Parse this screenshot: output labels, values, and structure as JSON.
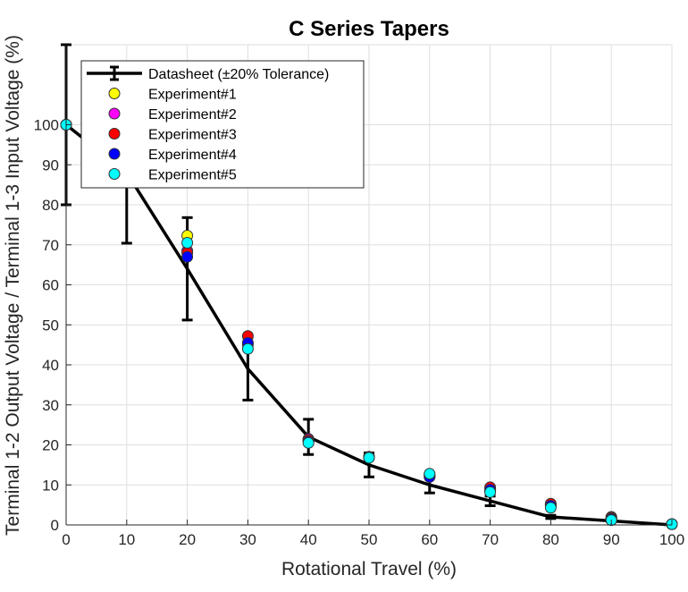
{
  "chart_data": {
    "type": "line",
    "title": "C Series Tapers",
    "xlabel": "Rotational Travel (%)",
    "ylabel": "Terminal 1-2 Output Voltage / Terminal 1-3 Input Voltage (%)",
    "xlim": [
      0,
      100
    ],
    "ylim": [
      0,
      120
    ],
    "xticks": [
      0,
      10,
      20,
      30,
      40,
      50,
      60,
      70,
      80,
      90,
      100
    ],
    "yticks": [
      0,
      10,
      20,
      30,
      40,
      50,
      60,
      70,
      80,
      90,
      100
    ],
    "grid": true,
    "legend_position": "top-left",
    "datasheet": {
      "name": "Datasheet (±20% Tolerance)",
      "color": "#000000",
      "x": [
        0,
        10,
        20,
        30,
        40,
        50,
        60,
        70,
        80,
        90,
        100
      ],
      "y": [
        100,
        88,
        64,
        39,
        22,
        15,
        10,
        6,
        2,
        1,
        0
      ],
      "err_low": [
        20,
        17.6,
        12.8,
        7.8,
        4.4,
        3,
        2,
        1.2,
        0.4,
        0.2,
        0
      ],
      "err_high": [
        20,
        17.6,
        12.8,
        7.8,
        4.4,
        3,
        2,
        1.2,
        0.4,
        0.2,
        0
      ]
    },
    "series": [
      {
        "name": "Experiment#1",
        "color": "#ffff00",
        "x": [
          0,
          20,
          30,
          40,
          50,
          60,
          70,
          80,
          90,
          100
        ],
        "y": [
          100,
          72.3,
          45,
          21,
          17,
          12.5,
          8.5,
          5,
          2,
          0.2
        ]
      },
      {
        "name": "Experiment#2",
        "color": "#ff00ff",
        "x": [
          0,
          20,
          30,
          40,
          50,
          60,
          70,
          80,
          90,
          100
        ],
        "y": [
          100,
          68.5,
          45.5,
          21.5,
          17,
          12,
          9,
          5,
          1.5,
          0.2
        ]
      },
      {
        "name": "Experiment#3",
        "color": "#ff0000",
        "x": [
          0,
          20,
          30,
          40,
          50,
          60,
          70,
          80,
          90,
          100
        ],
        "y": [
          100,
          68,
          47.2,
          21.2,
          17,
          12.5,
          9.4,
          5.3,
          1.8,
          0.2
        ]
      },
      {
        "name": "Experiment#4",
        "color": "#0000ff",
        "x": [
          0,
          20,
          30,
          40,
          50,
          60,
          70,
          80,
          90,
          100
        ],
        "y": [
          100,
          67,
          45.5,
          20.8,
          16.8,
          12,
          8.8,
          4.8,
          1.5,
          0.2
        ]
      },
      {
        "name": "Experiment#5",
        "color": "#00ffff",
        "x": [
          0,
          20,
          30,
          40,
          50,
          60,
          70,
          80,
          90,
          100
        ],
        "y": [
          100,
          70.5,
          44,
          20.5,
          16.8,
          12.8,
          8.2,
          4.3,
          1.2,
          0.2
        ]
      }
    ]
  }
}
